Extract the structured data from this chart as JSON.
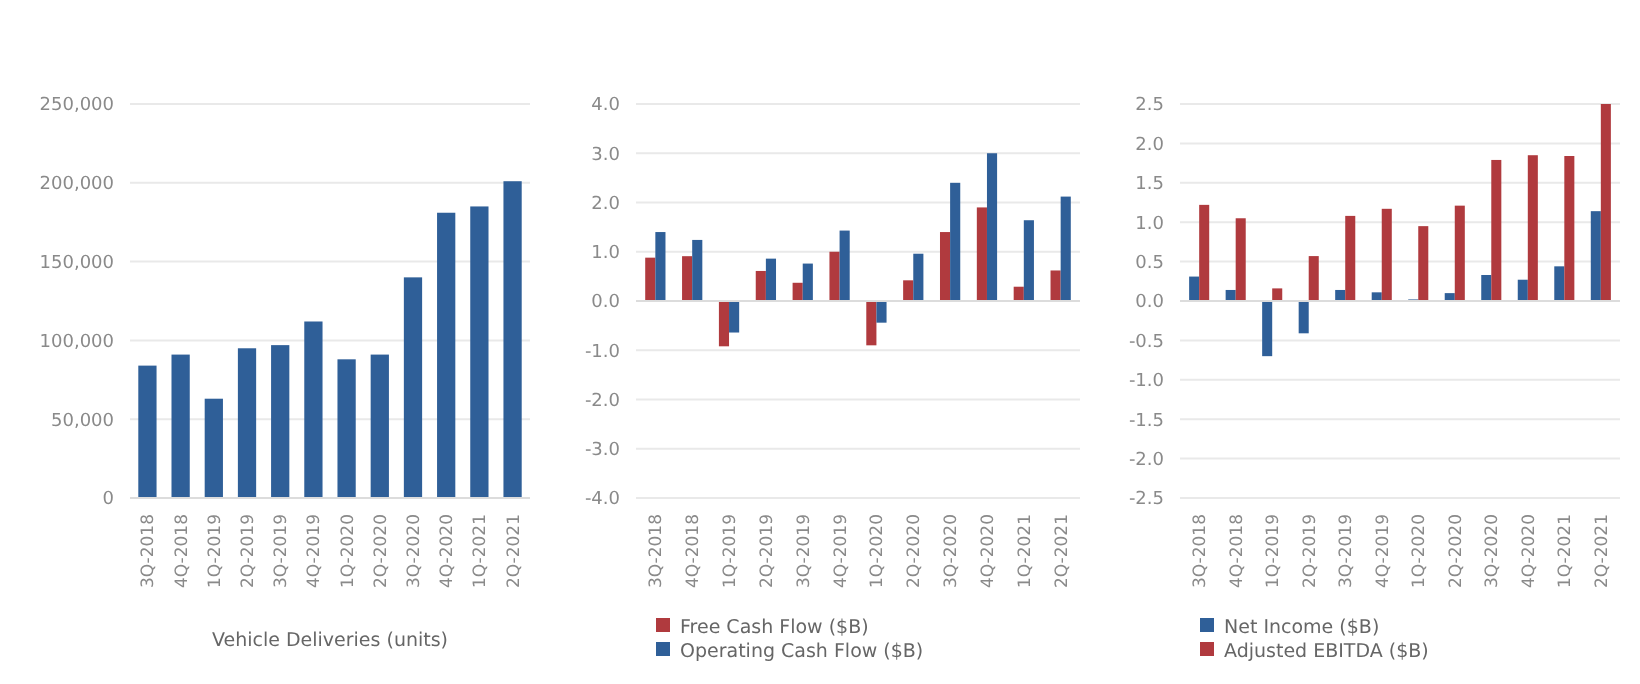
{
  "chart_data": [
    {
      "type": "bar",
      "xlabel": "Vehicle Deliveries (units)",
      "categories": [
        "3Q-2018",
        "4Q-2018",
        "1Q-2019",
        "2Q-2019",
        "3Q-2019",
        "4Q-2019",
        "1Q-2020",
        "2Q-2020",
        "3Q-2020",
        "4Q-2020",
        "1Q-2021",
        "2Q-2021"
      ],
      "series": [
        {
          "color": "#2f5f98",
          "values": [
            84000,
            91000,
            63000,
            95000,
            97000,
            112000,
            88000,
            91000,
            140000,
            181000,
            185000,
            201000
          ]
        }
      ],
      "ylim": [
        0,
        250000
      ],
      "yticks": [
        {
          "value": 0,
          "label": "0"
        },
        {
          "value": 50000,
          "label": "50,000"
        },
        {
          "value": 100000,
          "label": "100,000"
        },
        {
          "value": 150000,
          "label": "150,000"
        },
        {
          "value": 200000,
          "label": "200,000"
        },
        {
          "value": 250000,
          "label": "250,000"
        }
      ],
      "grid": "y",
      "legend": false
    },
    {
      "type": "bar",
      "categories": [
        "3Q-2018",
        "4Q-2018",
        "1Q-2019",
        "2Q-2019",
        "3Q-2019",
        "4Q-2019",
        "1Q-2020",
        "2Q-2020",
        "3Q-2020",
        "4Q-2020",
        "1Q-2021",
        "2Q-2021"
      ],
      "series": [
        {
          "name": "Free Cash Flow ($B)",
          "color": "#b03a3e",
          "values": [
            0.88,
            0.91,
            -0.92,
            0.61,
            0.37,
            1.0,
            -0.9,
            0.42,
            1.4,
            1.9,
            0.29,
            0.62
          ]
        },
        {
          "name": "Operating Cash Flow ($B)",
          "color": "#2f5f98",
          "values": [
            1.4,
            1.24,
            -0.64,
            0.86,
            0.76,
            1.43,
            -0.44,
            0.96,
            2.4,
            3.0,
            1.64,
            2.12
          ]
        }
      ],
      "ylim": [
        -4,
        4
      ],
      "yticks": [
        {
          "value": -4,
          "label": "-4.0"
        },
        {
          "value": -3,
          "label": "-3.0"
        },
        {
          "value": -2,
          "label": "-2.0"
        },
        {
          "value": -1,
          "label": "-1.0"
        },
        {
          "value": 0,
          "label": "0.0"
        },
        {
          "value": 1,
          "label": "1.0"
        },
        {
          "value": 2,
          "label": "2.0"
        },
        {
          "value": 3,
          "label": "3.0"
        },
        {
          "value": 4,
          "label": "4.0"
        }
      ],
      "grid": "y",
      "legend": "bottom"
    },
    {
      "type": "bar",
      "categories": [
        "3Q-2018",
        "4Q-2018",
        "1Q-2019",
        "2Q-2019",
        "3Q-2019",
        "4Q-2019",
        "1Q-2020",
        "2Q-2020",
        "3Q-2020",
        "4Q-2020",
        "1Q-2021",
        "2Q-2021"
      ],
      "series": [
        {
          "name": "Net Income ($B)",
          "color": "#2f5f98",
          "values": [
            0.31,
            0.14,
            -0.7,
            -0.41,
            0.14,
            0.11,
            0.02,
            0.1,
            0.33,
            0.27,
            0.44,
            1.14
          ]
        },
        {
          "name": "Adjusted EBITDA ($B)",
          "color": "#b03a3e",
          "values": [
            1.22,
            1.05,
            0.16,
            0.57,
            1.08,
            1.17,
            0.95,
            1.21,
            1.79,
            1.85,
            1.84,
            2.5
          ]
        }
      ],
      "ylim": [
        -2.5,
        2.5
      ],
      "yticks": [
        -2.5,
        {
          "value": -2,
          "label": "-2.0"
        },
        -1.5,
        {
          "value": -1,
          "label": "-1.0"
        },
        -0.5,
        {
          "value": 0,
          "label": "0.0"
        },
        0.5,
        {
          "value": 1,
          "label": "1.0"
        },
        1.5,
        {
          "value": 2,
          "label": "2.0"
        },
        2.5
      ],
      "grid": "y",
      "legend": "bottom"
    }
  ]
}
